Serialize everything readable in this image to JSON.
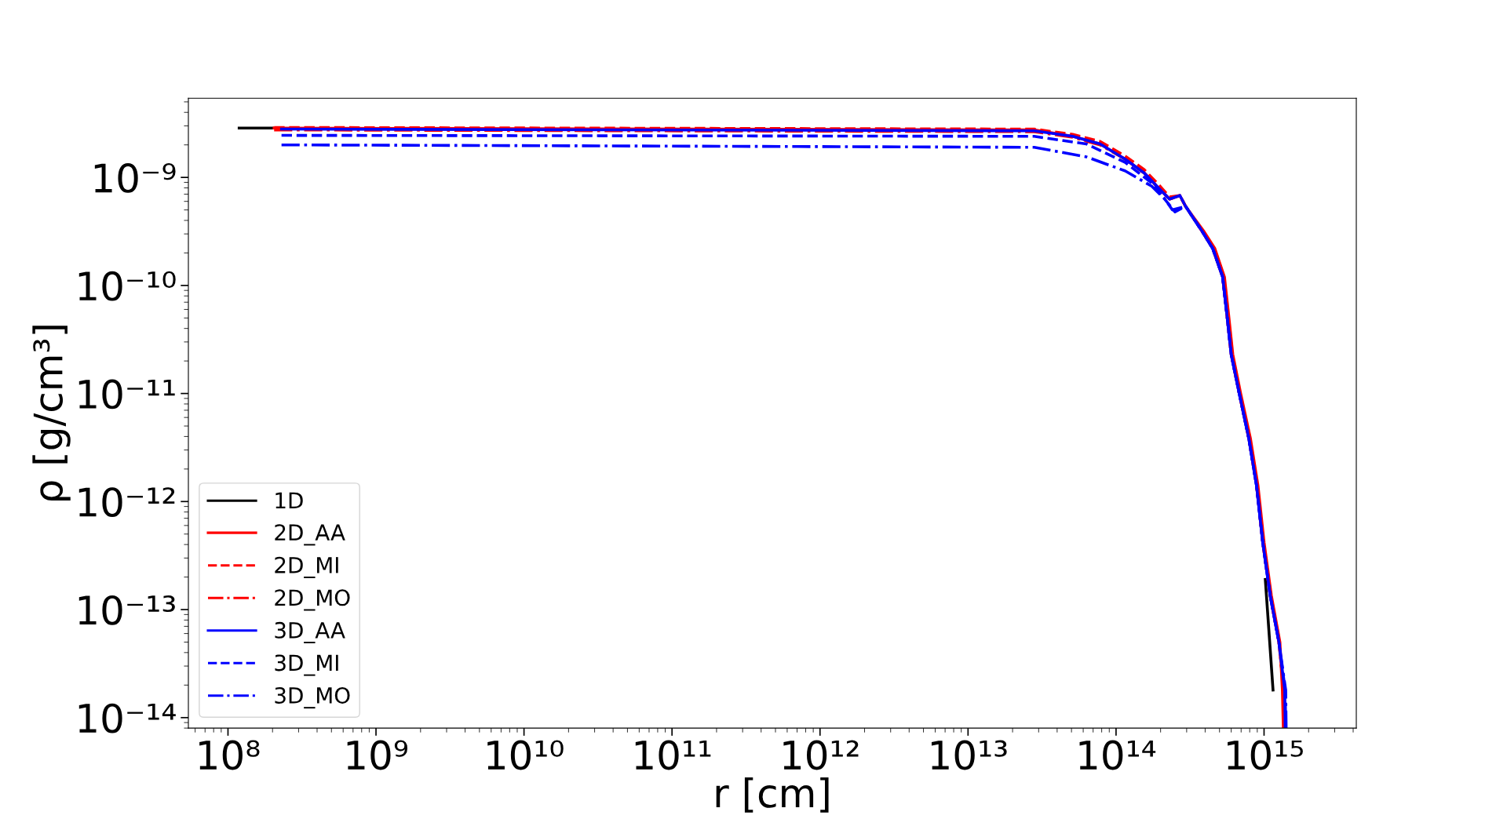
{
  "chart_data": {
    "type": "line",
    "xlabel": "r [cm]",
    "ylabel": "ρ [g/cm³]",
    "log": "xy",
    "grid": false,
    "legend": "bottom left",
    "xlim": [
      54000000.0,
      4200000000000000.0
    ],
    "ylim": [
      8e-15,
      5.4e-09
    ],
    "xticks": [
      {
        "value": 100000000.0,
        "label": "10⁸"
      },
      {
        "value": 1000000000.0,
        "label": "10⁹"
      },
      {
        "value": 10000000000.0,
        "label": "10¹⁰"
      },
      {
        "value": 100000000000.0,
        "label": "10¹¹"
      },
      {
        "value": 1000000000000.0,
        "label": "10¹²"
      },
      {
        "value": 10000000000000.0,
        "label": "10¹³"
      },
      {
        "value": 100000000000000.0,
        "label": "10¹⁴"
      },
      {
        "value": 1000000000000000.0,
        "label": "10¹⁵"
      }
    ],
    "yticks": [
      {
        "value": 1e-14,
        "label": "10⁻¹⁴"
      },
      {
        "value": 1e-13,
        "label": "10⁻¹³"
      },
      {
        "value": 1e-12,
        "label": "10⁻¹²"
      },
      {
        "value": 1e-11,
        "label": "10⁻¹¹"
      },
      {
        "value": 1e-10,
        "label": "10⁻¹⁰"
      },
      {
        "value": 1e-09,
        "label": "10⁻⁹"
      }
    ],
    "series": [
      {
        "name": "1D",
        "color": "#000000",
        "line_style": "solid",
        "x": [
          119000000.0,
          200000000.0,
          28000000000000.0,
          1020000000000000.0,
          1150000000000000.0
        ],
        "values": [
          2.86e-09,
          2.86e-09,
          null,
          1.9e-13,
          1.8e-14
        ]
      },
      {
        "name": "2D_AA",
        "color": "#ff0000",
        "line_style": "solid",
        "x": [
          205000000.0,
          28000000000000.0,
          51000000000000.0,
          78000000000000.0,
          115000000000000.0,
          155000000000000.0,
          195000000000000.0,
          230000000000000.0,
          270000000000000.0,
          295000000000000.0,
          390000000000000.0,
          465000000000000.0,
          540000000000000.0,
          575000000000000.0,
          615000000000000.0,
          695000000000000.0,
          810000000000000.0,
          910000000000000.0,
          1000000000000000.0,
          1120000000000000.0,
          1280000000000000.0,
          1330000000000000.0,
          1350000000000000.0
        ],
        "values": [
          2.86e-09,
          2.75e-09,
          2.4e-09,
          2.04e-09,
          1.48e-09,
          1.1e-09,
          7.9e-10,
          6.3e-10,
          6.8e-10,
          5.4e-10,
          3.2e-10,
          2.2e-10,
          1.2e-10,
          5.5e-11,
          2.3e-11,
          1e-11,
          3.8e-12,
          1.4e-12,
          4.2e-13,
          1.35e-13,
          5e-14,
          1.8e-14,
          8e-15
        ]
      },
      {
        "name": "2D_MI",
        "color": "#ff0000",
        "line_style": "dashed",
        "x": [
          205000000.0,
          28000000000000.0,
          51000000000000.0,
          78000000000000.0,
          115000000000000.0,
          155000000000000.0,
          195000000000000.0,
          230000000000000.0,
          270000000000000.0,
          295000000000000.0,
          380000000000000.0,
          450000000000000.0,
          525000000000000.0,
          560000000000000.0,
          600000000000000.0,
          680000000000000.0,
          790000000000000.0,
          890000000000000.0,
          980000000000000.0,
          1100000000000000.0,
          1260000000000000.0,
          1360000000000000.0,
          1370000000000000.0
        ],
        "values": [
          2.9e-09,
          2.8e-09,
          2.5e-09,
          2.15e-09,
          1.58e-09,
          1.18e-09,
          8.5e-10,
          6.6e-10,
          6.8e-10,
          5.4e-10,
          3.2e-10,
          2.2e-10,
          1.2e-10,
          5.5e-11,
          2.3e-11,
          1e-11,
          3.8e-12,
          1.4e-12,
          4.2e-13,
          1.35e-13,
          5e-14,
          1.8e-14,
          8e-15
        ]
      },
      {
        "name": "2D_MO",
        "color": "#ff0000",
        "line_style": "dashdot",
        "x": [
          205000000.0,
          28000000000000.0,
          51000000000000.0,
          78000000000000.0,
          115000000000000.0,
          155000000000000.0,
          195000000000000.0,
          230000000000000.0,
          270000000000000.0,
          295000000000000.0,
          380000000000000.0,
          450000000000000.0,
          525000000000000.0,
          560000000000000.0,
          600000000000000.0,
          680000000000000.0,
          790000000000000.0,
          890000000000000.0,
          980000000000000.0,
          1100000000000000.0,
          1260000000000000.0,
          1360000000000000.0,
          1370000000000000.0
        ],
        "values": [
          2.75e-09,
          2.65e-09,
          2.35e-09,
          2e-09,
          1.48e-09,
          1.1e-09,
          7.9e-10,
          6.3e-10,
          6.8e-10,
          5.4e-10,
          3.2e-10,
          2.2e-10,
          1.2e-10,
          5.5e-11,
          2.3e-11,
          1e-11,
          3.8e-12,
          1.4e-12,
          4.2e-13,
          1.35e-13,
          5e-14,
          1.8e-14,
          8e-15
        ]
      },
      {
        "name": "3D_AA",
        "color": "#0000ff",
        "line_style": "solid",
        "x": [
          230000000.0,
          28000000000000.0,
          51000000000000.0,
          78000000000000.0,
          115000000000000.0,
          155000000000000.0,
          195000000000000.0,
          230000000000000.0,
          270000000000000.0,
          295000000000000.0,
          380000000000000.0,
          450000000000000.0,
          525000000000000.0,
          560000000000000.0,
          600000000000000.0,
          680000000000000.0,
          790000000000000.0,
          890000000000000.0,
          980000000000000.0,
          1100000000000000.0,
          1260000000000000.0,
          1380000000000000.0,
          1390000000000000.0
        ],
        "values": [
          2.8e-09,
          2.7e-09,
          2.4e-09,
          2.04e-09,
          1.48e-09,
          1.1e-09,
          7.9e-10,
          6.3e-10,
          6.8e-10,
          5.4e-10,
          3.2e-10,
          2.2e-10,
          1.2e-10,
          5.5e-11,
          2.3e-11,
          1e-11,
          3.8e-12,
          1.4e-12,
          4.2e-13,
          1.35e-13,
          5e-14,
          1.8e-14,
          8e-15
        ]
      },
      {
        "name": "3D_MI",
        "color": "#0000ff",
        "line_style": "dashed",
        "x": [
          230000000.0,
          28000000000000.0,
          63000000000000.0,
          115000000000000.0,
          174000000000000.0,
          250000000000000.0,
          295000000000000.0,
          380000000000000.0,
          450000000000000.0,
          525000000000000.0,
          560000000000000.0,
          600000000000000.0,
          680000000000000.0,
          790000000000000.0,
          890000000000000.0,
          980000000000000.0,
          1100000000000000.0,
          1260000000000000.0,
          1390000000000000.0,
          1400000000000000.0
        ],
        "values": [
          2.45e-09,
          2.4e-09,
          2.04e-09,
          1.38e-09,
          8.9e-10,
          4.8e-10,
          5.4e-10,
          3.2e-10,
          2.2e-10,
          1.2e-10,
          5.5e-11,
          2.3e-11,
          1e-11,
          3.8e-12,
          1.4e-12,
          4.2e-13,
          1.35e-13,
          5e-14,
          1.8e-14,
          8e-15
        ]
      },
      {
        "name": "3D_MO",
        "color": "#0000ff",
        "line_style": "dashdot",
        "x": [
          230000000.0,
          28000000000000.0,
          63000000000000.0,
          115000000000000.0,
          174000000000000.0,
          214000000000000.0,
          240000000000000.0,
          295000000000000.0,
          380000000000000.0,
          450000000000000.0,
          525000000000000.0,
          560000000000000.0,
          600000000000000.0,
          680000000000000.0,
          790000000000000.0,
          890000000000000.0,
          980000000000000.0,
          1100000000000000.0,
          1260000000000000.0,
          1400000000000000.0,
          1410000000000000.0
        ],
        "values": [
          2e-09,
          1.9e-09,
          1.55e-09,
          1.15e-09,
          8.3e-10,
          6.3e-10,
          5e-10,
          5.4e-10,
          3.2e-10,
          2.2e-10,
          1.2e-10,
          5.5e-11,
          2.3e-11,
          1e-11,
          3.8e-12,
          1.4e-12,
          4.2e-13,
          1.35e-13,
          5e-14,
          1.8e-14,
          8e-15
        ]
      }
    ]
  }
}
